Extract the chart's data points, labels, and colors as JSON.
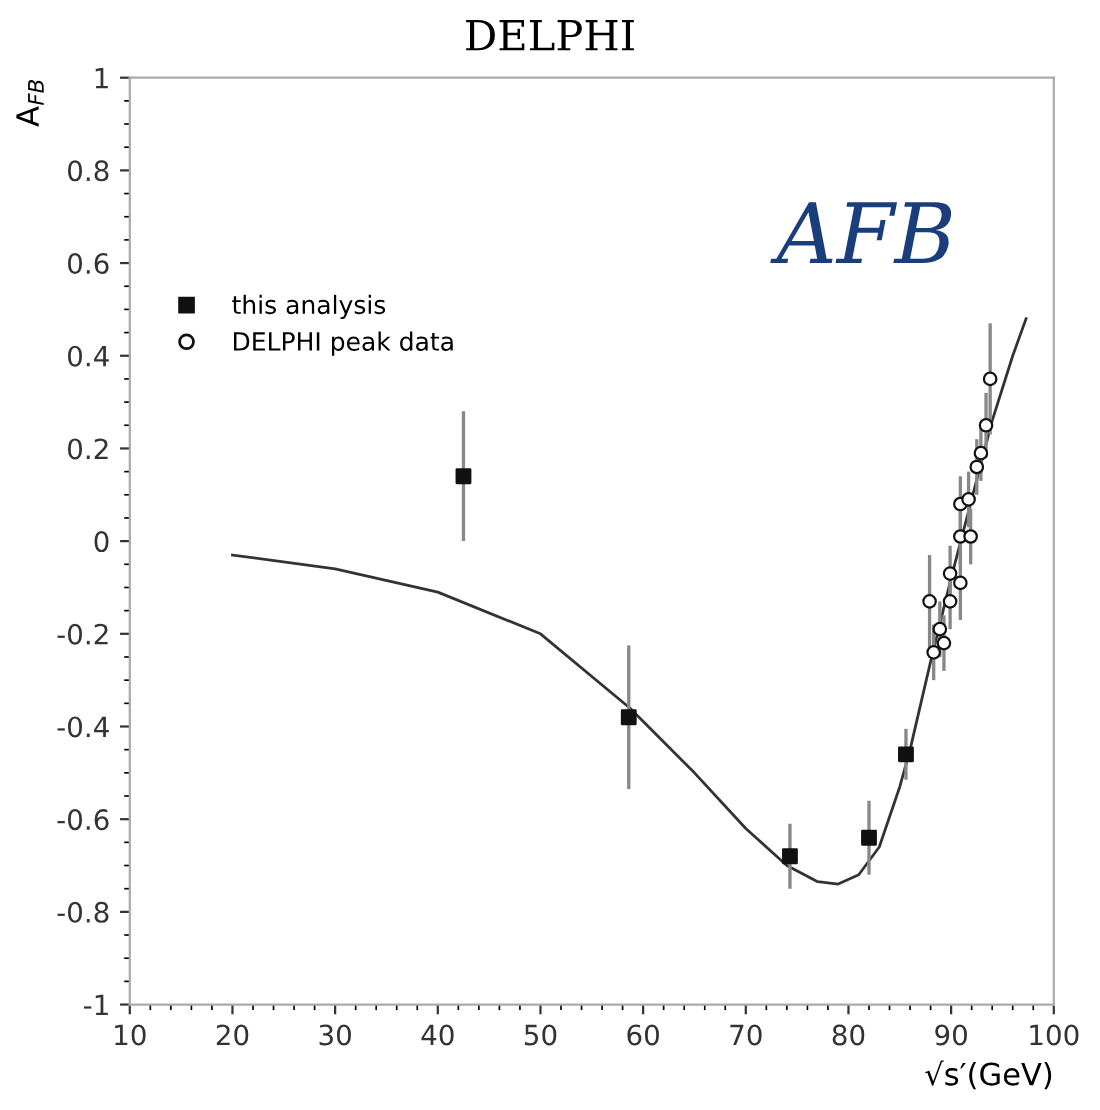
{
  "chart_data": {
    "type": "scatter",
    "title": "DELPHI",
    "xlabel": "√s′(GeV)",
    "ylabel": "A$_{FB}$",
    "xlim": [
      10,
      100
    ],
    "xticks": [
      10,
      20,
      30,
      40,
      50,
      60,
      70,
      80,
      90,
      100
    ],
    "ylim": [
      -1,
      1
    ],
    "yticks": [
      -1,
      -0.8,
      -0.6,
      -0.4,
      -0.2,
      0,
      0.2,
      0.4,
      0.6,
      0.8,
      1
    ],
    "grid": false,
    "legend": "top left",
    "annotations": [
      "AFB"
    ],
    "series": [
      {
        "name": "this analysis",
        "marker": "square",
        "color": "#111111",
        "x": [
          42.5,
          58.6,
          74.3,
          82.0,
          85.6
        ],
        "values": [
          0.14,
          -0.38,
          -0.68,
          -0.64,
          -0.46
        ],
        "errors": [
          0.14,
          0.155,
          0.07,
          0.08,
          0.055
        ]
      },
      {
        "name": "DELPHI peak data",
        "marker": "circle",
        "color": "#111111",
        "x": [
          93.8,
          93.4,
          92.9,
          92.5,
          90.9,
          91.7,
          90.9,
          91.9,
          89.9,
          90.9,
          87.9,
          89.9,
          88.9,
          89.3,
          88.3
        ],
        "values": [
          0.35,
          0.25,
          0.19,
          0.16,
          0.08,
          0.09,
          0.01,
          0.01,
          -0.07,
          -0.09,
          -0.13,
          -0.13,
          -0.19,
          -0.22,
          -0.24
        ],
        "errors": [
          0.12,
          0.07,
          0.06,
          0.06,
          0.06,
          0.06,
          0.06,
          0.06,
          0.06,
          0.08,
          0.1,
          0.06,
          0.06,
          0.06,
          0.06
        ]
      },
      {
        "type": "line",
        "color": "#333333",
        "line_style": "solid",
        "marker": "none",
        "x": [
          20,
          30,
          40,
          50,
          58.7,
          65,
          70,
          74,
          77,
          79,
          81,
          83,
          85,
          86,
          88,
          90,
          92,
          94,
          96,
          97.3
        ],
        "values": [
          -0.03,
          -0.06,
          -0.11,
          -0.2,
          -0.36,
          -0.5,
          -0.62,
          -0.7,
          -0.735,
          -0.74,
          -0.72,
          -0.66,
          -0.53,
          -0.45,
          -0.26,
          -0.08,
          0.09,
          0.26,
          0.4,
          0.48
        ]
      }
    ]
  }
}
